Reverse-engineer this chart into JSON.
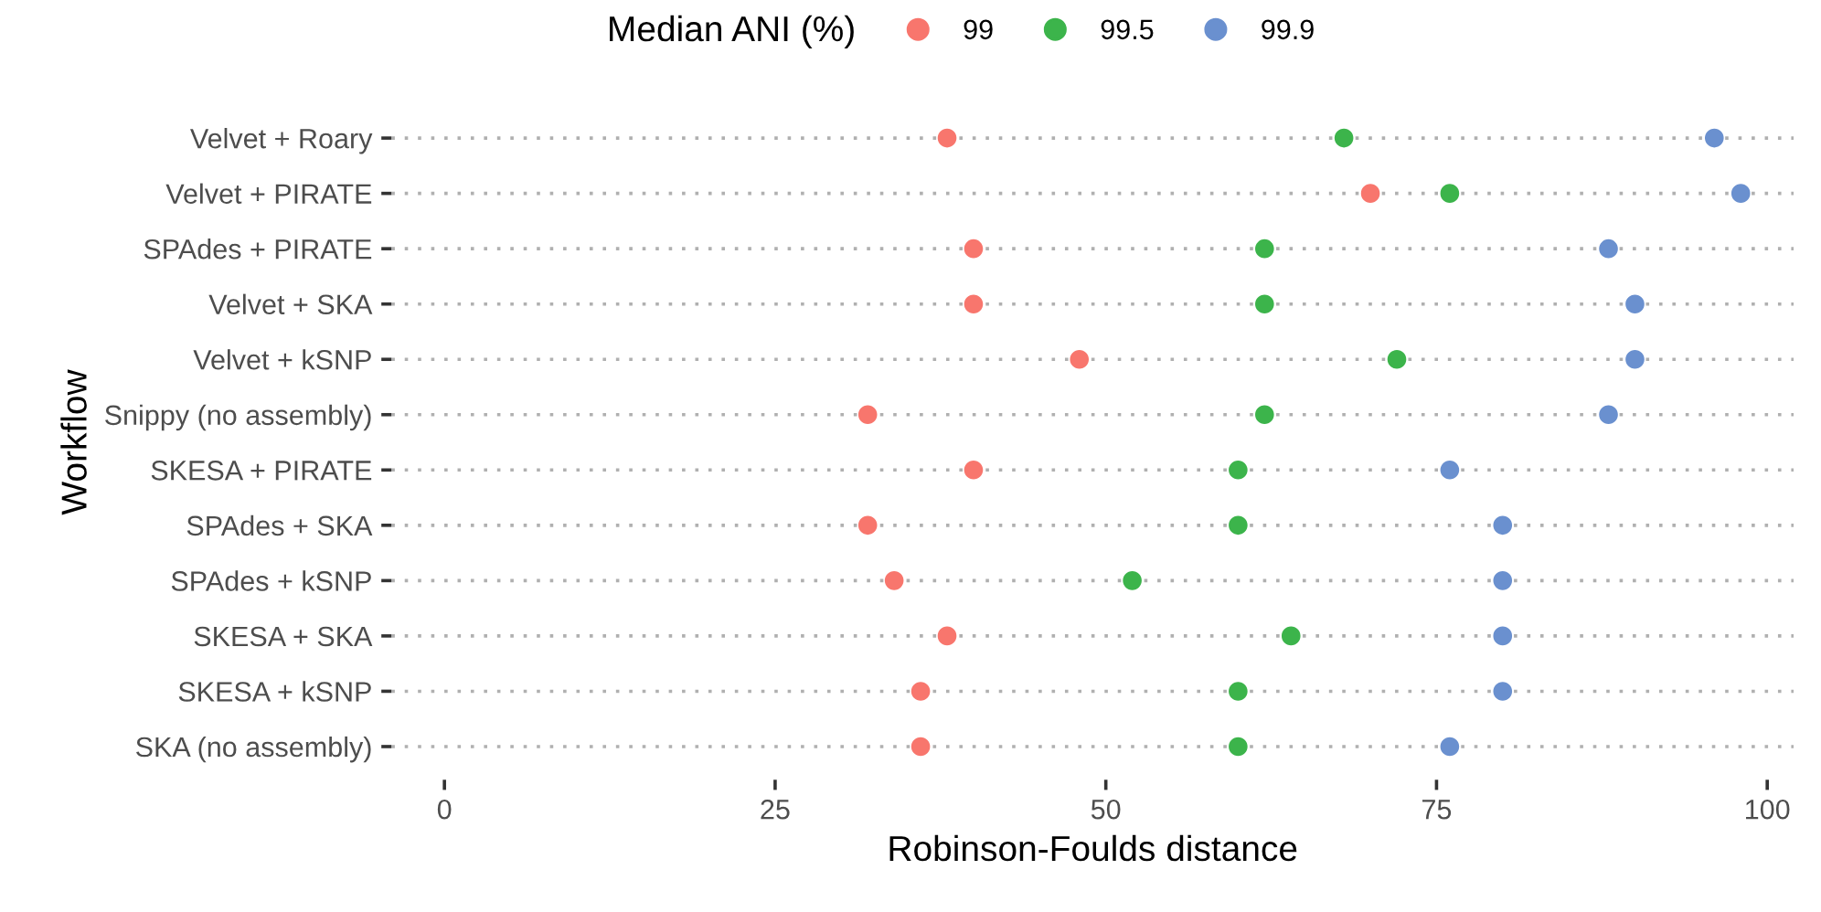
{
  "chart_data": {
    "type": "scatter",
    "orientation": "horizontal",
    "xlabel": "Robinson-Foulds distance",
    "ylabel": "Workflow",
    "legend_title": "Median ANI (%)",
    "legend": "top",
    "grid": "y",
    "marker": "circle",
    "categories": [
      "Velvet + Roary",
      "Velvet + PIRATE",
      "SPAdes + PIRATE",
      "Velvet + SKA",
      "Velvet + kSNP",
      "Snippy (no assembly)",
      "SKESA + PIRATE",
      "SPAdes + SKA",
      "SPAdes + kSNP",
      "SKESA + SKA",
      "SKESA + kSNP",
      "SKA (no assembly)"
    ],
    "xlim": [
      -4,
      102
    ],
    "xticks": [
      0,
      25,
      50,
      75,
      100
    ],
    "series": [
      {
        "name": "99",
        "color": "#f8766d",
        "values": [
          38,
          70,
          40,
          40,
          48,
          32,
          40,
          32,
          34,
          38,
          36,
          36
        ]
      },
      {
        "name": "99.5",
        "color": "#3cb44b",
        "values": [
          68,
          76,
          62,
          62,
          72,
          62,
          60,
          60,
          52,
          64,
          60,
          60
        ]
      },
      {
        "name": "99.9",
        "color": "#6a90cf",
        "values": [
          96,
          98,
          88,
          90,
          90,
          88,
          76,
          80,
          80,
          80,
          80,
          76
        ]
      }
    ]
  }
}
